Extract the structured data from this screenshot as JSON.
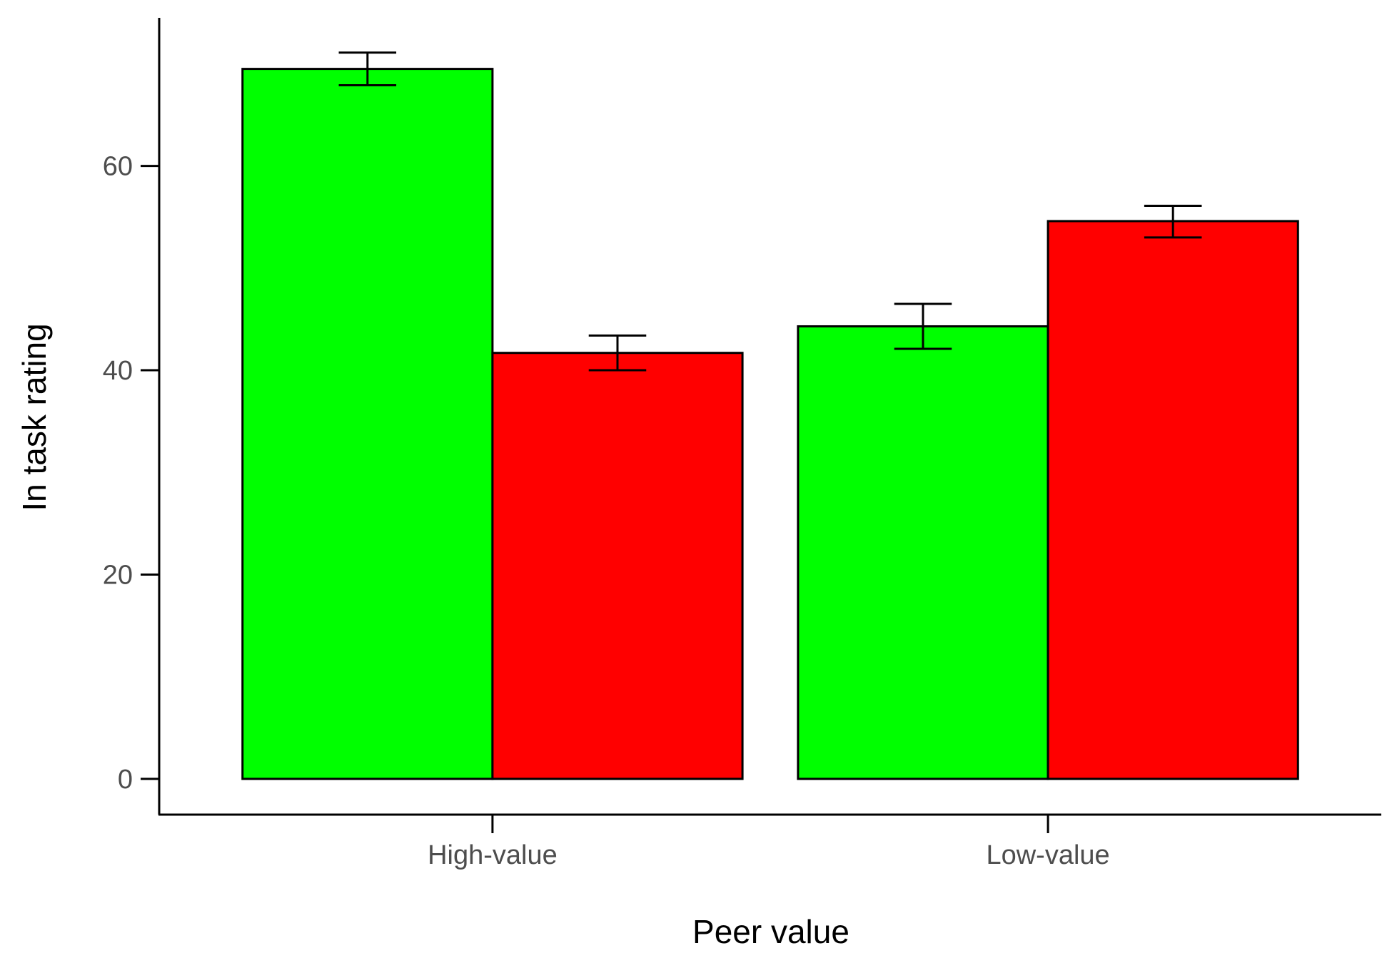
{
  "chart_data": {
    "type": "bar",
    "title": "",
    "xlabel": "Peer value",
    "ylabel": "In task rating",
    "categories": [
      "High-value",
      "Low-value"
    ],
    "series": [
      {
        "color": "#00ff00",
        "values": [
          69.5,
          44.3
        ],
        "error_low": [
          67.9,
          42.1
        ],
        "error_high": [
          71.1,
          46.5
        ]
      },
      {
        "color": "#ff0000",
        "values": [
          41.7,
          54.6
        ],
        "error_low": [
          40.0,
          53.0
        ],
        "error_high": [
          43.4,
          56.1
        ]
      }
    ],
    "ylim": [
      -3.5,
      74.5
    ],
    "yticks": [
      0,
      20,
      40,
      60
    ],
    "grid": false,
    "legend": "none"
  }
}
